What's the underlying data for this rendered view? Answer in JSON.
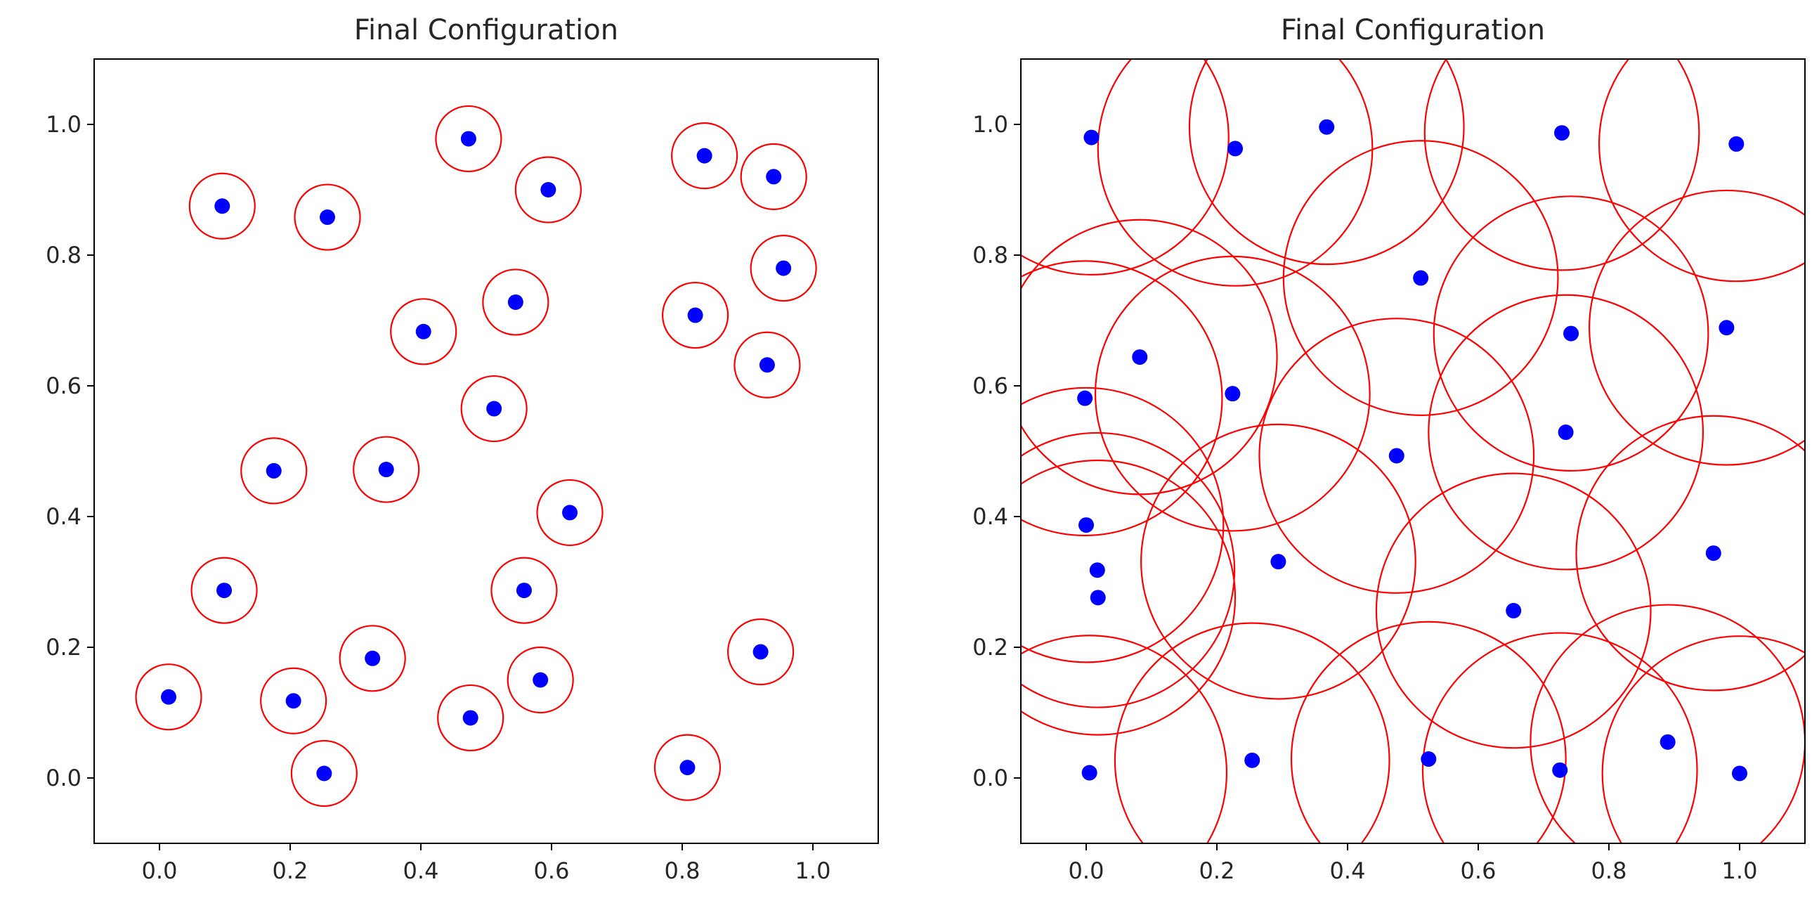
{
  "chart_data": [
    {
      "type": "scatter",
      "title": "Final Configuration",
      "xlabel": "",
      "ylabel": "",
      "xlim": [
        -0.1,
        1.1
      ],
      "ylim": [
        -0.1,
        1.1
      ],
      "xticks": [
        "0.0",
        "0.2",
        "0.4",
        "0.6",
        "0.8",
        "1.0"
      ],
      "yticks": [
        "0.0",
        "0.2",
        "0.4",
        "0.6",
        "0.8",
        "1.0"
      ],
      "grid": false,
      "marker_color": "#0000ff",
      "circle_color": "#ff0000",
      "circle_radius": 0.05,
      "points": [
        {
          "x": 0.473,
          "y": 0.978
        },
        {
          "x": 0.834,
          "y": 0.952
        },
        {
          "x": 0.94,
          "y": 0.92
        },
        {
          "x": 0.595,
          "y": 0.9
        },
        {
          "x": 0.096,
          "y": 0.875
        },
        {
          "x": 0.257,
          "y": 0.858
        },
        {
          "x": 0.955,
          "y": 0.78
        },
        {
          "x": 0.545,
          "y": 0.728
        },
        {
          "x": 0.82,
          "y": 0.708
        },
        {
          "x": 0.404,
          "y": 0.683
        },
        {
          "x": 0.93,
          "y": 0.632
        },
        {
          "x": 0.512,
          "y": 0.565
        },
        {
          "x": 0.175,
          "y": 0.47
        },
        {
          "x": 0.347,
          "y": 0.472
        },
        {
          "x": 0.628,
          "y": 0.406
        },
        {
          "x": 0.099,
          "y": 0.287
        },
        {
          "x": 0.558,
          "y": 0.287
        },
        {
          "x": 0.92,
          "y": 0.193
        },
        {
          "x": 0.326,
          "y": 0.183
        },
        {
          "x": 0.583,
          "y": 0.15
        },
        {
          "x": 0.014,
          "y": 0.124
        },
        {
          "x": 0.205,
          "y": 0.118
        },
        {
          "x": 0.476,
          "y": 0.092
        },
        {
          "x": 0.252,
          "y": 0.007
        },
        {
          "x": 0.808,
          "y": 0.016
        }
      ]
    },
    {
      "type": "scatter",
      "title": "Final Configuration",
      "xlabel": "",
      "ylabel": "",
      "xlim": [
        -0.1,
        1.1
      ],
      "ylim": [
        -0.1,
        1.1
      ],
      "xticks": [
        "0.0",
        "0.2",
        "0.4",
        "0.6",
        "0.8",
        "1.0"
      ],
      "yticks": [
        "0.0",
        "0.2",
        "0.4",
        "0.6",
        "0.8",
        "1.0"
      ],
      "grid": false,
      "marker_color": "#0000ff",
      "circle_color": "#ff0000",
      "circle_radius": 0.21,
      "points": [
        {
          "x": 0.008,
          "y": 0.98
        },
        {
          "x": 0.228,
          "y": 0.963
        },
        {
          "x": 0.368,
          "y": 0.996
        },
        {
          "x": 0.728,
          "y": 0.987
        },
        {
          "x": 0.995,
          "y": 0.97
        },
        {
          "x": 0.512,
          "y": 0.765
        },
        {
          "x": 0.082,
          "y": 0.644
        },
        {
          "x": 0.742,
          "y": 0.68
        },
        {
          "x": 0.98,
          "y": 0.689
        },
        {
          "x": -0.002,
          "y": 0.581
        },
        {
          "x": 0.224,
          "y": 0.588
        },
        {
          "x": 0.734,
          "y": 0.529
        },
        {
          "x": 0.475,
          "y": 0.493
        },
        {
          "x": 0.0,
          "y": 0.387
        },
        {
          "x": 0.017,
          "y": 0.318
        },
        {
          "x": 0.294,
          "y": 0.331
        },
        {
          "x": 0.96,
          "y": 0.344
        },
        {
          "x": 0.018,
          "y": 0.276
        },
        {
          "x": 0.654,
          "y": 0.256
        },
        {
          "x": 0.005,
          "y": 0.008
        },
        {
          "x": 0.254,
          "y": 0.027
        },
        {
          "x": 0.524,
          "y": 0.029
        },
        {
          "x": 0.725,
          "y": 0.012
        },
        {
          "x": 0.89,
          "y": 0.055
        },
        {
          "x": 1.0,
          "y": 0.007
        }
      ]
    }
  ]
}
